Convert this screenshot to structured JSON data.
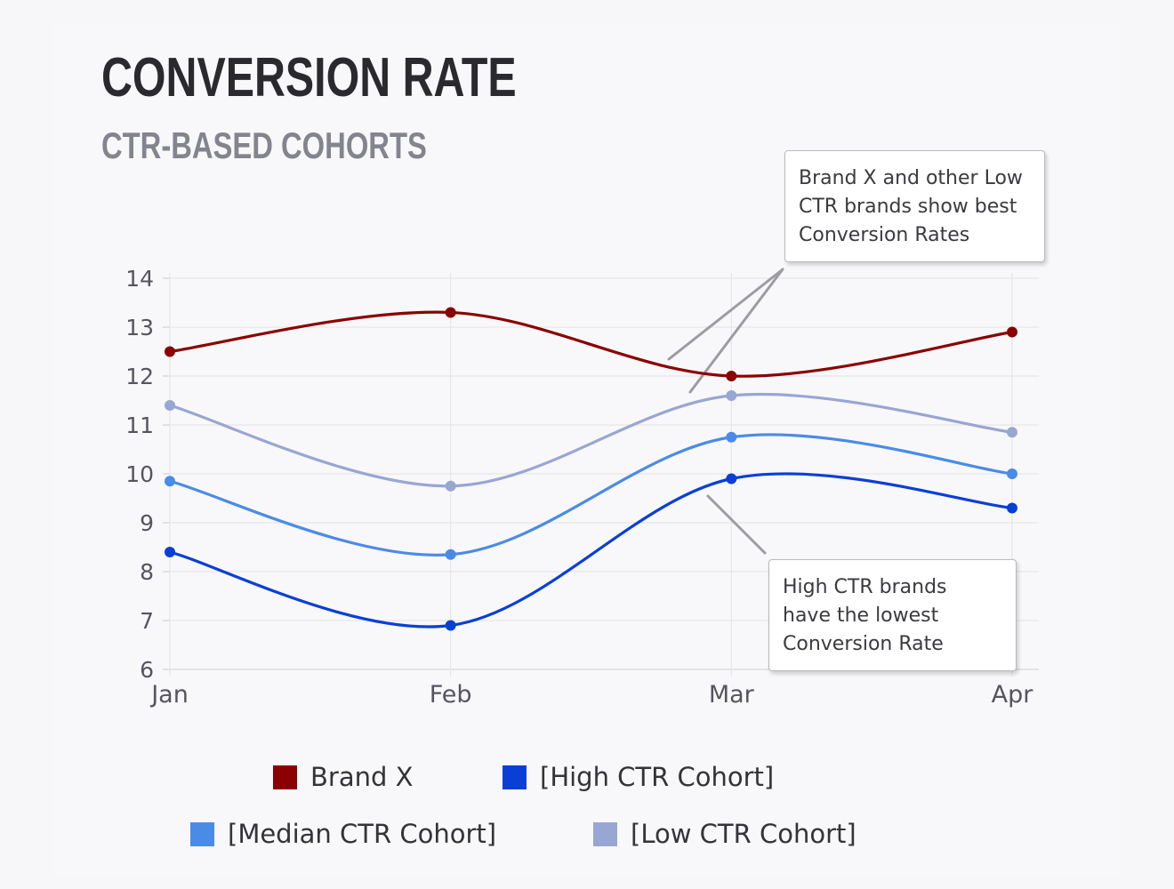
{
  "title": "CONVERSION RATE",
  "subtitle_bold": "CTR",
  "subtitle_rest": "-BASED COHORTS",
  "chart_data": {
    "type": "line",
    "title": "CONVERSION RATE",
    "subtitle": "CTR-BASED COHORTS",
    "categories": [
      "Jan",
      "Feb",
      "Mar",
      "Apr"
    ],
    "ylim": [
      6,
      14
    ],
    "yticks": [
      6,
      7,
      8,
      9,
      10,
      11,
      12,
      13,
      14
    ],
    "grid": true,
    "legend_position": "bottom",
    "series": [
      {
        "name": "Brand X",
        "color": "#8b0000",
        "values": [
          12.5,
          13.3,
          12.0,
          12.9
        ]
      },
      {
        "name": "[High CTR Cohort]",
        "color": "#0a3fd6",
        "values": [
          8.4,
          6.9,
          9.9,
          9.3
        ]
      },
      {
        "name": "[Median CTR Cohort]",
        "color": "#4a8be8",
        "values": [
          9.85,
          8.35,
          10.75,
          10.0
        ]
      },
      {
        "name": "[Low CTR Cohort]",
        "color": "#98a6d2",
        "values": [
          11.4,
          9.75,
          11.6,
          10.85
        ]
      }
    ],
    "annotations": [
      {
        "lines": [
          "Brand X and other Low",
          "CTR brands show best",
          "Conversion Rates"
        ]
      },
      {
        "lines": [
          "High CTR brands",
          "have the lowest",
          "Conversion Rate"
        ]
      }
    ]
  }
}
